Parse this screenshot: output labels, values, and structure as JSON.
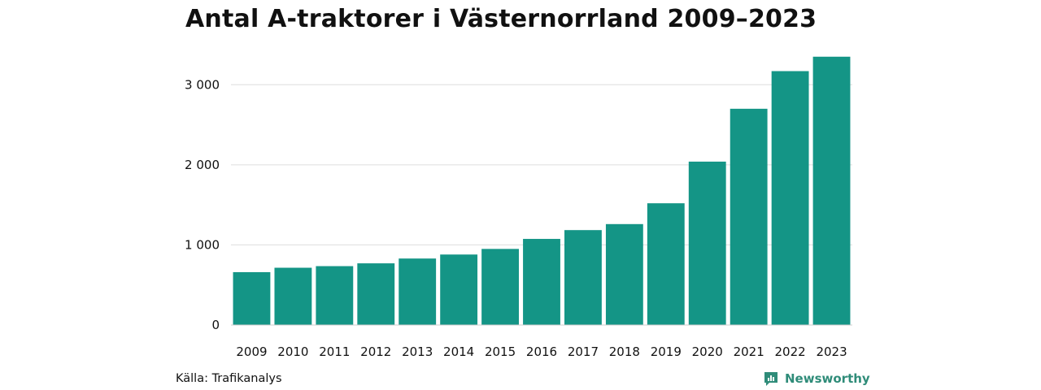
{
  "title": "Antal A-traktorer i Västernorrland 2009–2023",
  "source": "Källa: Trafikanalys",
  "brand": {
    "name": "Newsworthy",
    "icon": "newsworthy-logo-icon"
  },
  "colors": {
    "bar": "#149586",
    "grid": "#dddddd",
    "axis": "#cccccc",
    "brand": "#2f8c79"
  },
  "chart_data": {
    "type": "bar",
    "title": "Antal A-traktorer i Västernorrland 2009–2023",
    "xlabel": "",
    "ylabel": "",
    "categories": [
      "2009",
      "2010",
      "2011",
      "2012",
      "2013",
      "2014",
      "2015",
      "2016",
      "2017",
      "2018",
      "2019",
      "2020",
      "2021",
      "2022",
      "2023"
    ],
    "values": [
      660,
      715,
      735,
      770,
      830,
      880,
      950,
      1075,
      1185,
      1260,
      1520,
      2040,
      2700,
      3170,
      3350
    ],
    "ylim": [
      0,
      3500
    ],
    "yticks": [
      0,
      1000,
      2000,
      3000
    ],
    "ytick_labels": [
      "0",
      "1 000",
      "2 000",
      "3 000"
    ],
    "grid": true,
    "legend": "none"
  }
}
